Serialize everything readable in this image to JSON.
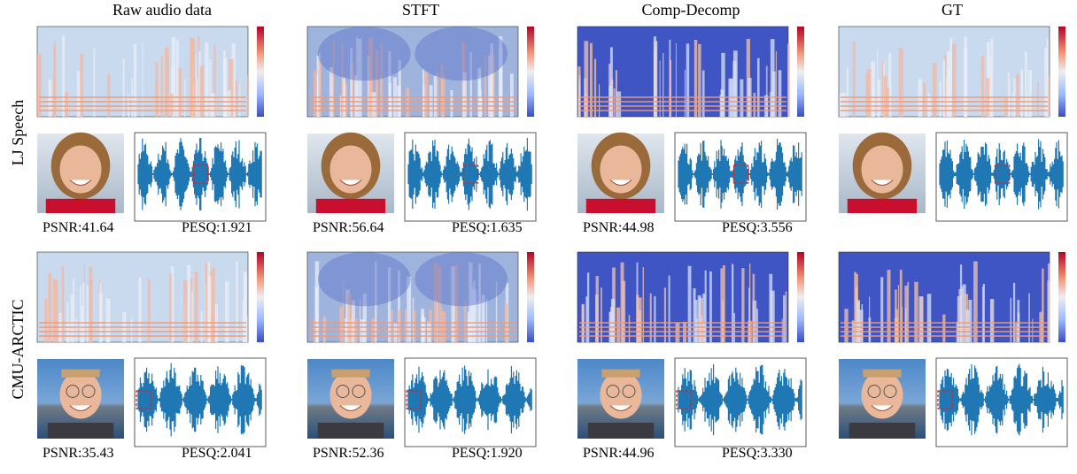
{
  "columns": [
    "Raw audio data",
    "STFT",
    "Comp-Decomp",
    "GT"
  ],
  "rows": [
    {
      "label": "LJ Speech",
      "metrics": [
        {
          "psnr": "PSNR:41.64",
          "pesq": "PESQ:1.921"
        },
        {
          "psnr": "PSNR:56.64",
          "pesq": "PESQ:1.635"
        },
        {
          "psnr": "PSNR:44.98",
          "pesq": "PESQ:3.556"
        }
      ]
    },
    {
      "label": "CMU-ARCTIC",
      "metrics": [
        {
          "psnr": "PSNR:35.43",
          "pesq": "PESQ:2.041"
        },
        {
          "psnr": "PSNR:52.36",
          "pesq": "PESQ:1.920"
        },
        {
          "psnr": "PSNR:44.96",
          "pesq": "PESQ:3.330"
        }
      ]
    }
  ]
}
